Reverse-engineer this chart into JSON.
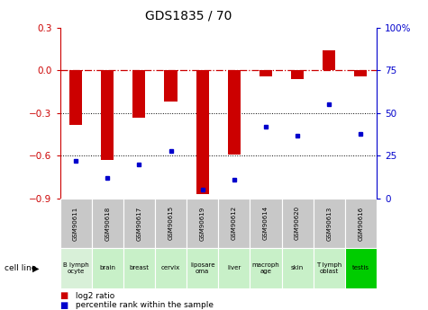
{
  "title": "GDS1835 / 70",
  "samples": [
    "GSM90611",
    "GSM90618",
    "GSM90617",
    "GSM90615",
    "GSM90619",
    "GSM90612",
    "GSM90614",
    "GSM90620",
    "GSM90613",
    "GSM90616"
  ],
  "cell_lines": [
    "B lymph\nocyte",
    "brain",
    "breast",
    "cervix",
    "liposare\noma",
    "liver",
    "macroph\nage",
    "skin",
    "T lymph\noblast",
    "testis"
  ],
  "log2_ratio": [
    -0.38,
    -0.63,
    -0.33,
    -0.22,
    -0.87,
    -0.59,
    -0.04,
    -0.06,
    0.14,
    -0.04
  ],
  "percentile_rank": [
    22,
    12,
    20,
    28,
    5,
    11,
    42,
    37,
    55,
    38
  ],
  "bar_color": "#cc0000",
  "dot_color": "#0000cc",
  "gsm_bg": "#c8c8c8",
  "ylim_left": [
    -0.9,
    0.3
  ],
  "ylim_right": [
    0,
    100
  ],
  "yticks_left": [
    -0.9,
    -0.6,
    -0.3,
    0.0,
    0.3
  ],
  "yticks_right": [
    0,
    25,
    50,
    75,
    100
  ],
  "dotted_lines": [
    -0.6,
    -0.3
  ],
  "dashdot_line": 0.0,
  "cell_bg_colors": [
    "#d8f0d8",
    "#c8f0c8",
    "#c8f0c8",
    "#c8f0c8",
    "#c8f0c8",
    "#c8f0c8",
    "#c8f0c8",
    "#c8f0c8",
    "#c8f0c8",
    "#00cc00"
  ]
}
